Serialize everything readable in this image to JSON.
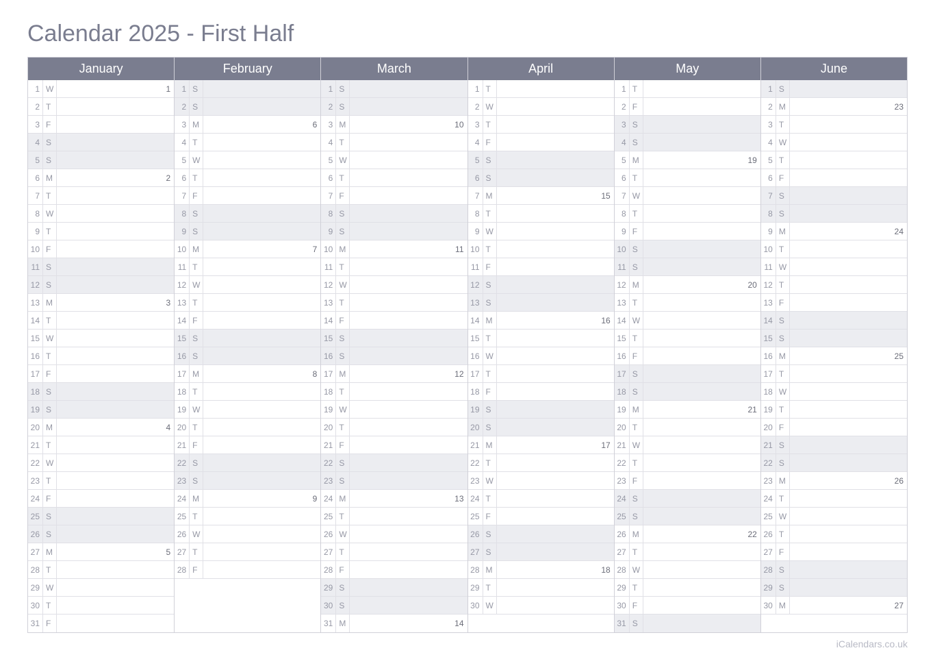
{
  "title": "Calendar 2025 - First Half",
  "footer": "iCalendars.co.uk",
  "colors": {
    "header_bg": "#7a7d8f",
    "header_text": "#ffffff",
    "weekend_bg": "#ecedf1",
    "border": "#d0d0d8",
    "cell_border": "#e0e0e6",
    "text": "#9698a5",
    "title": "#7a7d8f",
    "note": "#6a6c78"
  },
  "months": [
    {
      "name": "January",
      "days": [
        {
          "n": 1,
          "d": "W",
          "note": "1",
          "wk": false
        },
        {
          "n": 2,
          "d": "T",
          "note": "",
          "wk": false
        },
        {
          "n": 3,
          "d": "F",
          "note": "",
          "wk": false
        },
        {
          "n": 4,
          "d": "S",
          "note": "",
          "wk": true
        },
        {
          "n": 5,
          "d": "S",
          "note": "",
          "wk": true
        },
        {
          "n": 6,
          "d": "M",
          "note": "2",
          "wk": false
        },
        {
          "n": 7,
          "d": "T",
          "note": "",
          "wk": false
        },
        {
          "n": 8,
          "d": "W",
          "note": "",
          "wk": false
        },
        {
          "n": 9,
          "d": "T",
          "note": "",
          "wk": false
        },
        {
          "n": 10,
          "d": "F",
          "note": "",
          "wk": false
        },
        {
          "n": 11,
          "d": "S",
          "note": "",
          "wk": true
        },
        {
          "n": 12,
          "d": "S",
          "note": "",
          "wk": true
        },
        {
          "n": 13,
          "d": "M",
          "note": "3",
          "wk": false
        },
        {
          "n": 14,
          "d": "T",
          "note": "",
          "wk": false
        },
        {
          "n": 15,
          "d": "W",
          "note": "",
          "wk": false
        },
        {
          "n": 16,
          "d": "T",
          "note": "",
          "wk": false
        },
        {
          "n": 17,
          "d": "F",
          "note": "",
          "wk": false
        },
        {
          "n": 18,
          "d": "S",
          "note": "",
          "wk": true
        },
        {
          "n": 19,
          "d": "S",
          "note": "",
          "wk": true
        },
        {
          "n": 20,
          "d": "M",
          "note": "4",
          "wk": false
        },
        {
          "n": 21,
          "d": "T",
          "note": "",
          "wk": false
        },
        {
          "n": 22,
          "d": "W",
          "note": "",
          "wk": false
        },
        {
          "n": 23,
          "d": "T",
          "note": "",
          "wk": false
        },
        {
          "n": 24,
          "d": "F",
          "note": "",
          "wk": false
        },
        {
          "n": 25,
          "d": "S",
          "note": "",
          "wk": true
        },
        {
          "n": 26,
          "d": "S",
          "note": "",
          "wk": true
        },
        {
          "n": 27,
          "d": "M",
          "note": "5",
          "wk": false
        },
        {
          "n": 28,
          "d": "T",
          "note": "",
          "wk": false
        },
        {
          "n": 29,
          "d": "W",
          "note": "",
          "wk": false
        },
        {
          "n": 30,
          "d": "T",
          "note": "",
          "wk": false
        },
        {
          "n": 31,
          "d": "F",
          "note": "",
          "wk": false
        }
      ]
    },
    {
      "name": "February",
      "days": [
        {
          "n": 1,
          "d": "S",
          "note": "",
          "wk": true
        },
        {
          "n": 2,
          "d": "S",
          "note": "",
          "wk": true
        },
        {
          "n": 3,
          "d": "M",
          "note": "6",
          "wk": false
        },
        {
          "n": 4,
          "d": "T",
          "note": "",
          "wk": false
        },
        {
          "n": 5,
          "d": "W",
          "note": "",
          "wk": false
        },
        {
          "n": 6,
          "d": "T",
          "note": "",
          "wk": false
        },
        {
          "n": 7,
          "d": "F",
          "note": "",
          "wk": false
        },
        {
          "n": 8,
          "d": "S",
          "note": "",
          "wk": true
        },
        {
          "n": 9,
          "d": "S",
          "note": "",
          "wk": true
        },
        {
          "n": 10,
          "d": "M",
          "note": "7",
          "wk": false
        },
        {
          "n": 11,
          "d": "T",
          "note": "",
          "wk": false
        },
        {
          "n": 12,
          "d": "W",
          "note": "",
          "wk": false
        },
        {
          "n": 13,
          "d": "T",
          "note": "",
          "wk": false
        },
        {
          "n": 14,
          "d": "F",
          "note": "",
          "wk": false
        },
        {
          "n": 15,
          "d": "S",
          "note": "",
          "wk": true
        },
        {
          "n": 16,
          "d": "S",
          "note": "",
          "wk": true
        },
        {
          "n": 17,
          "d": "M",
          "note": "8",
          "wk": false
        },
        {
          "n": 18,
          "d": "T",
          "note": "",
          "wk": false
        },
        {
          "n": 19,
          "d": "W",
          "note": "",
          "wk": false
        },
        {
          "n": 20,
          "d": "T",
          "note": "",
          "wk": false
        },
        {
          "n": 21,
          "d": "F",
          "note": "",
          "wk": false
        },
        {
          "n": 22,
          "d": "S",
          "note": "",
          "wk": true
        },
        {
          "n": 23,
          "d": "S",
          "note": "",
          "wk": true
        },
        {
          "n": 24,
          "d": "M",
          "note": "9",
          "wk": false
        },
        {
          "n": 25,
          "d": "T",
          "note": "",
          "wk": false
        },
        {
          "n": 26,
          "d": "W",
          "note": "",
          "wk": false
        },
        {
          "n": 27,
          "d": "T",
          "note": "",
          "wk": false
        },
        {
          "n": 28,
          "d": "F",
          "note": "",
          "wk": false
        }
      ]
    },
    {
      "name": "March",
      "days": [
        {
          "n": 1,
          "d": "S",
          "note": "",
          "wk": true
        },
        {
          "n": 2,
          "d": "S",
          "note": "",
          "wk": true
        },
        {
          "n": 3,
          "d": "M",
          "note": "10",
          "wk": false
        },
        {
          "n": 4,
          "d": "T",
          "note": "",
          "wk": false
        },
        {
          "n": 5,
          "d": "W",
          "note": "",
          "wk": false
        },
        {
          "n": 6,
          "d": "T",
          "note": "",
          "wk": false
        },
        {
          "n": 7,
          "d": "F",
          "note": "",
          "wk": false
        },
        {
          "n": 8,
          "d": "S",
          "note": "",
          "wk": true
        },
        {
          "n": 9,
          "d": "S",
          "note": "",
          "wk": true
        },
        {
          "n": 10,
          "d": "M",
          "note": "11",
          "wk": false
        },
        {
          "n": 11,
          "d": "T",
          "note": "",
          "wk": false
        },
        {
          "n": 12,
          "d": "W",
          "note": "",
          "wk": false
        },
        {
          "n": 13,
          "d": "T",
          "note": "",
          "wk": false
        },
        {
          "n": 14,
          "d": "F",
          "note": "",
          "wk": false
        },
        {
          "n": 15,
          "d": "S",
          "note": "",
          "wk": true
        },
        {
          "n": 16,
          "d": "S",
          "note": "",
          "wk": true
        },
        {
          "n": 17,
          "d": "M",
          "note": "12",
          "wk": false
        },
        {
          "n": 18,
          "d": "T",
          "note": "",
          "wk": false
        },
        {
          "n": 19,
          "d": "W",
          "note": "",
          "wk": false
        },
        {
          "n": 20,
          "d": "T",
          "note": "",
          "wk": false
        },
        {
          "n": 21,
          "d": "F",
          "note": "",
          "wk": false
        },
        {
          "n": 22,
          "d": "S",
          "note": "",
          "wk": true
        },
        {
          "n": 23,
          "d": "S",
          "note": "",
          "wk": true
        },
        {
          "n": 24,
          "d": "M",
          "note": "13",
          "wk": false
        },
        {
          "n": 25,
          "d": "T",
          "note": "",
          "wk": false
        },
        {
          "n": 26,
          "d": "W",
          "note": "",
          "wk": false
        },
        {
          "n": 27,
          "d": "T",
          "note": "",
          "wk": false
        },
        {
          "n": 28,
          "d": "F",
          "note": "",
          "wk": false
        },
        {
          "n": 29,
          "d": "S",
          "note": "",
          "wk": true
        },
        {
          "n": 30,
          "d": "S",
          "note": "",
          "wk": true
        },
        {
          "n": 31,
          "d": "M",
          "note": "14",
          "wk": false
        }
      ]
    },
    {
      "name": "April",
      "days": [
        {
          "n": 1,
          "d": "T",
          "note": "",
          "wk": false
        },
        {
          "n": 2,
          "d": "W",
          "note": "",
          "wk": false
        },
        {
          "n": 3,
          "d": "T",
          "note": "",
          "wk": false
        },
        {
          "n": 4,
          "d": "F",
          "note": "",
          "wk": false
        },
        {
          "n": 5,
          "d": "S",
          "note": "",
          "wk": true
        },
        {
          "n": 6,
          "d": "S",
          "note": "",
          "wk": true
        },
        {
          "n": 7,
          "d": "M",
          "note": "15",
          "wk": false
        },
        {
          "n": 8,
          "d": "T",
          "note": "",
          "wk": false
        },
        {
          "n": 9,
          "d": "W",
          "note": "",
          "wk": false
        },
        {
          "n": 10,
          "d": "T",
          "note": "",
          "wk": false
        },
        {
          "n": 11,
          "d": "F",
          "note": "",
          "wk": false
        },
        {
          "n": 12,
          "d": "S",
          "note": "",
          "wk": true
        },
        {
          "n": 13,
          "d": "S",
          "note": "",
          "wk": true
        },
        {
          "n": 14,
          "d": "M",
          "note": "16",
          "wk": false
        },
        {
          "n": 15,
          "d": "T",
          "note": "",
          "wk": false
        },
        {
          "n": 16,
          "d": "W",
          "note": "",
          "wk": false
        },
        {
          "n": 17,
          "d": "T",
          "note": "",
          "wk": false
        },
        {
          "n": 18,
          "d": "F",
          "note": "",
          "wk": false
        },
        {
          "n": 19,
          "d": "S",
          "note": "",
          "wk": true
        },
        {
          "n": 20,
          "d": "S",
          "note": "",
          "wk": true
        },
        {
          "n": 21,
          "d": "M",
          "note": "17",
          "wk": false
        },
        {
          "n": 22,
          "d": "T",
          "note": "",
          "wk": false
        },
        {
          "n": 23,
          "d": "W",
          "note": "",
          "wk": false
        },
        {
          "n": 24,
          "d": "T",
          "note": "",
          "wk": false
        },
        {
          "n": 25,
          "d": "F",
          "note": "",
          "wk": false
        },
        {
          "n": 26,
          "d": "S",
          "note": "",
          "wk": true
        },
        {
          "n": 27,
          "d": "S",
          "note": "",
          "wk": true
        },
        {
          "n": 28,
          "d": "M",
          "note": "18",
          "wk": false
        },
        {
          "n": 29,
          "d": "T",
          "note": "",
          "wk": false
        },
        {
          "n": 30,
          "d": "W",
          "note": "",
          "wk": false
        }
      ]
    },
    {
      "name": "May",
      "days": [
        {
          "n": 1,
          "d": "T",
          "note": "",
          "wk": false
        },
        {
          "n": 2,
          "d": "F",
          "note": "",
          "wk": false
        },
        {
          "n": 3,
          "d": "S",
          "note": "",
          "wk": true
        },
        {
          "n": 4,
          "d": "S",
          "note": "",
          "wk": true
        },
        {
          "n": 5,
          "d": "M",
          "note": "19",
          "wk": false
        },
        {
          "n": 6,
          "d": "T",
          "note": "",
          "wk": false
        },
        {
          "n": 7,
          "d": "W",
          "note": "",
          "wk": false
        },
        {
          "n": 8,
          "d": "T",
          "note": "",
          "wk": false
        },
        {
          "n": 9,
          "d": "F",
          "note": "",
          "wk": false
        },
        {
          "n": 10,
          "d": "S",
          "note": "",
          "wk": true
        },
        {
          "n": 11,
          "d": "S",
          "note": "",
          "wk": true
        },
        {
          "n": 12,
          "d": "M",
          "note": "20",
          "wk": false
        },
        {
          "n": 13,
          "d": "T",
          "note": "",
          "wk": false
        },
        {
          "n": 14,
          "d": "W",
          "note": "",
          "wk": false
        },
        {
          "n": 15,
          "d": "T",
          "note": "",
          "wk": false
        },
        {
          "n": 16,
          "d": "F",
          "note": "",
          "wk": false
        },
        {
          "n": 17,
          "d": "S",
          "note": "",
          "wk": true
        },
        {
          "n": 18,
          "d": "S",
          "note": "",
          "wk": true
        },
        {
          "n": 19,
          "d": "M",
          "note": "21",
          "wk": false
        },
        {
          "n": 20,
          "d": "T",
          "note": "",
          "wk": false
        },
        {
          "n": 21,
          "d": "W",
          "note": "",
          "wk": false
        },
        {
          "n": 22,
          "d": "T",
          "note": "",
          "wk": false
        },
        {
          "n": 23,
          "d": "F",
          "note": "",
          "wk": false
        },
        {
          "n": 24,
          "d": "S",
          "note": "",
          "wk": true
        },
        {
          "n": 25,
          "d": "S",
          "note": "",
          "wk": true
        },
        {
          "n": 26,
          "d": "M",
          "note": "22",
          "wk": false
        },
        {
          "n": 27,
          "d": "T",
          "note": "",
          "wk": false
        },
        {
          "n": 28,
          "d": "W",
          "note": "",
          "wk": false
        },
        {
          "n": 29,
          "d": "T",
          "note": "",
          "wk": false
        },
        {
          "n": 30,
          "d": "F",
          "note": "",
          "wk": false
        },
        {
          "n": 31,
          "d": "S",
          "note": "",
          "wk": true
        }
      ]
    },
    {
      "name": "June",
      "days": [
        {
          "n": 1,
          "d": "S",
          "note": "",
          "wk": true
        },
        {
          "n": 2,
          "d": "M",
          "note": "23",
          "wk": false
        },
        {
          "n": 3,
          "d": "T",
          "note": "",
          "wk": false
        },
        {
          "n": 4,
          "d": "W",
          "note": "",
          "wk": false
        },
        {
          "n": 5,
          "d": "T",
          "note": "",
          "wk": false
        },
        {
          "n": 6,
          "d": "F",
          "note": "",
          "wk": false
        },
        {
          "n": 7,
          "d": "S",
          "note": "",
          "wk": true
        },
        {
          "n": 8,
          "d": "S",
          "note": "",
          "wk": true
        },
        {
          "n": 9,
          "d": "M",
          "note": "24",
          "wk": false
        },
        {
          "n": 10,
          "d": "T",
          "note": "",
          "wk": false
        },
        {
          "n": 11,
          "d": "W",
          "note": "",
          "wk": false
        },
        {
          "n": 12,
          "d": "T",
          "note": "",
          "wk": false
        },
        {
          "n": 13,
          "d": "F",
          "note": "",
          "wk": false
        },
        {
          "n": 14,
          "d": "S",
          "note": "",
          "wk": true
        },
        {
          "n": 15,
          "d": "S",
          "note": "",
          "wk": true
        },
        {
          "n": 16,
          "d": "M",
          "note": "25",
          "wk": false
        },
        {
          "n": 17,
          "d": "T",
          "note": "",
          "wk": false
        },
        {
          "n": 18,
          "d": "W",
          "note": "",
          "wk": false
        },
        {
          "n": 19,
          "d": "T",
          "note": "",
          "wk": false
        },
        {
          "n": 20,
          "d": "F",
          "note": "",
          "wk": false
        },
        {
          "n": 21,
          "d": "S",
          "note": "",
          "wk": true
        },
        {
          "n": 22,
          "d": "S",
          "note": "",
          "wk": true
        },
        {
          "n": 23,
          "d": "M",
          "note": "26",
          "wk": false
        },
        {
          "n": 24,
          "d": "T",
          "note": "",
          "wk": false
        },
        {
          "n": 25,
          "d": "W",
          "note": "",
          "wk": false
        },
        {
          "n": 26,
          "d": "T",
          "note": "",
          "wk": false
        },
        {
          "n": 27,
          "d": "F",
          "note": "",
          "wk": false
        },
        {
          "n": 28,
          "d": "S",
          "note": "",
          "wk": true
        },
        {
          "n": 29,
          "d": "S",
          "note": "",
          "wk": true
        },
        {
          "n": 30,
          "d": "M",
          "note": "27",
          "wk": false
        }
      ]
    }
  ],
  "max_rows": 31
}
